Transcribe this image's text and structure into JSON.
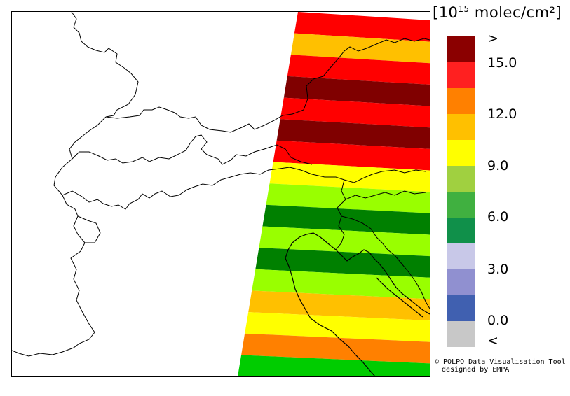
{
  "unit_label": {
    "prefix": "[10",
    "exponent": "15",
    "suffix": " molec/cm²]"
  },
  "legend": {
    "colors": [
      "#8b0000",
      "#ff2020",
      "#ff8000",
      "#ffc000",
      "#ffff00",
      "#a0d040",
      "#40b040",
      "#10904a",
      "#c8c8e8",
      "#9090d0",
      "#4060b0",
      "#c8c8c8"
    ],
    "labels": [
      ">",
      "15.0",
      "12.0",
      "9.0",
      "6.0",
      "3.0",
      "0.0",
      "<"
    ]
  },
  "credit": {
    "line1": "© POLPO Data Visualisation Tool",
    "line2": "designed by EMPA"
  },
  "swath": {
    "colors": [
      "#ff0000",
      "#ffc000",
      "#ff0000",
      "#800000",
      "#ff0000",
      "#800000",
      "#ff0000",
      "#ffff00",
      "#99ff00",
      "#008000",
      "#99ff00",
      "#008000",
      "#99ff00",
      "#ffc000",
      "#ffff00",
      "#ff8000",
      "#00cc00"
    ]
  }
}
